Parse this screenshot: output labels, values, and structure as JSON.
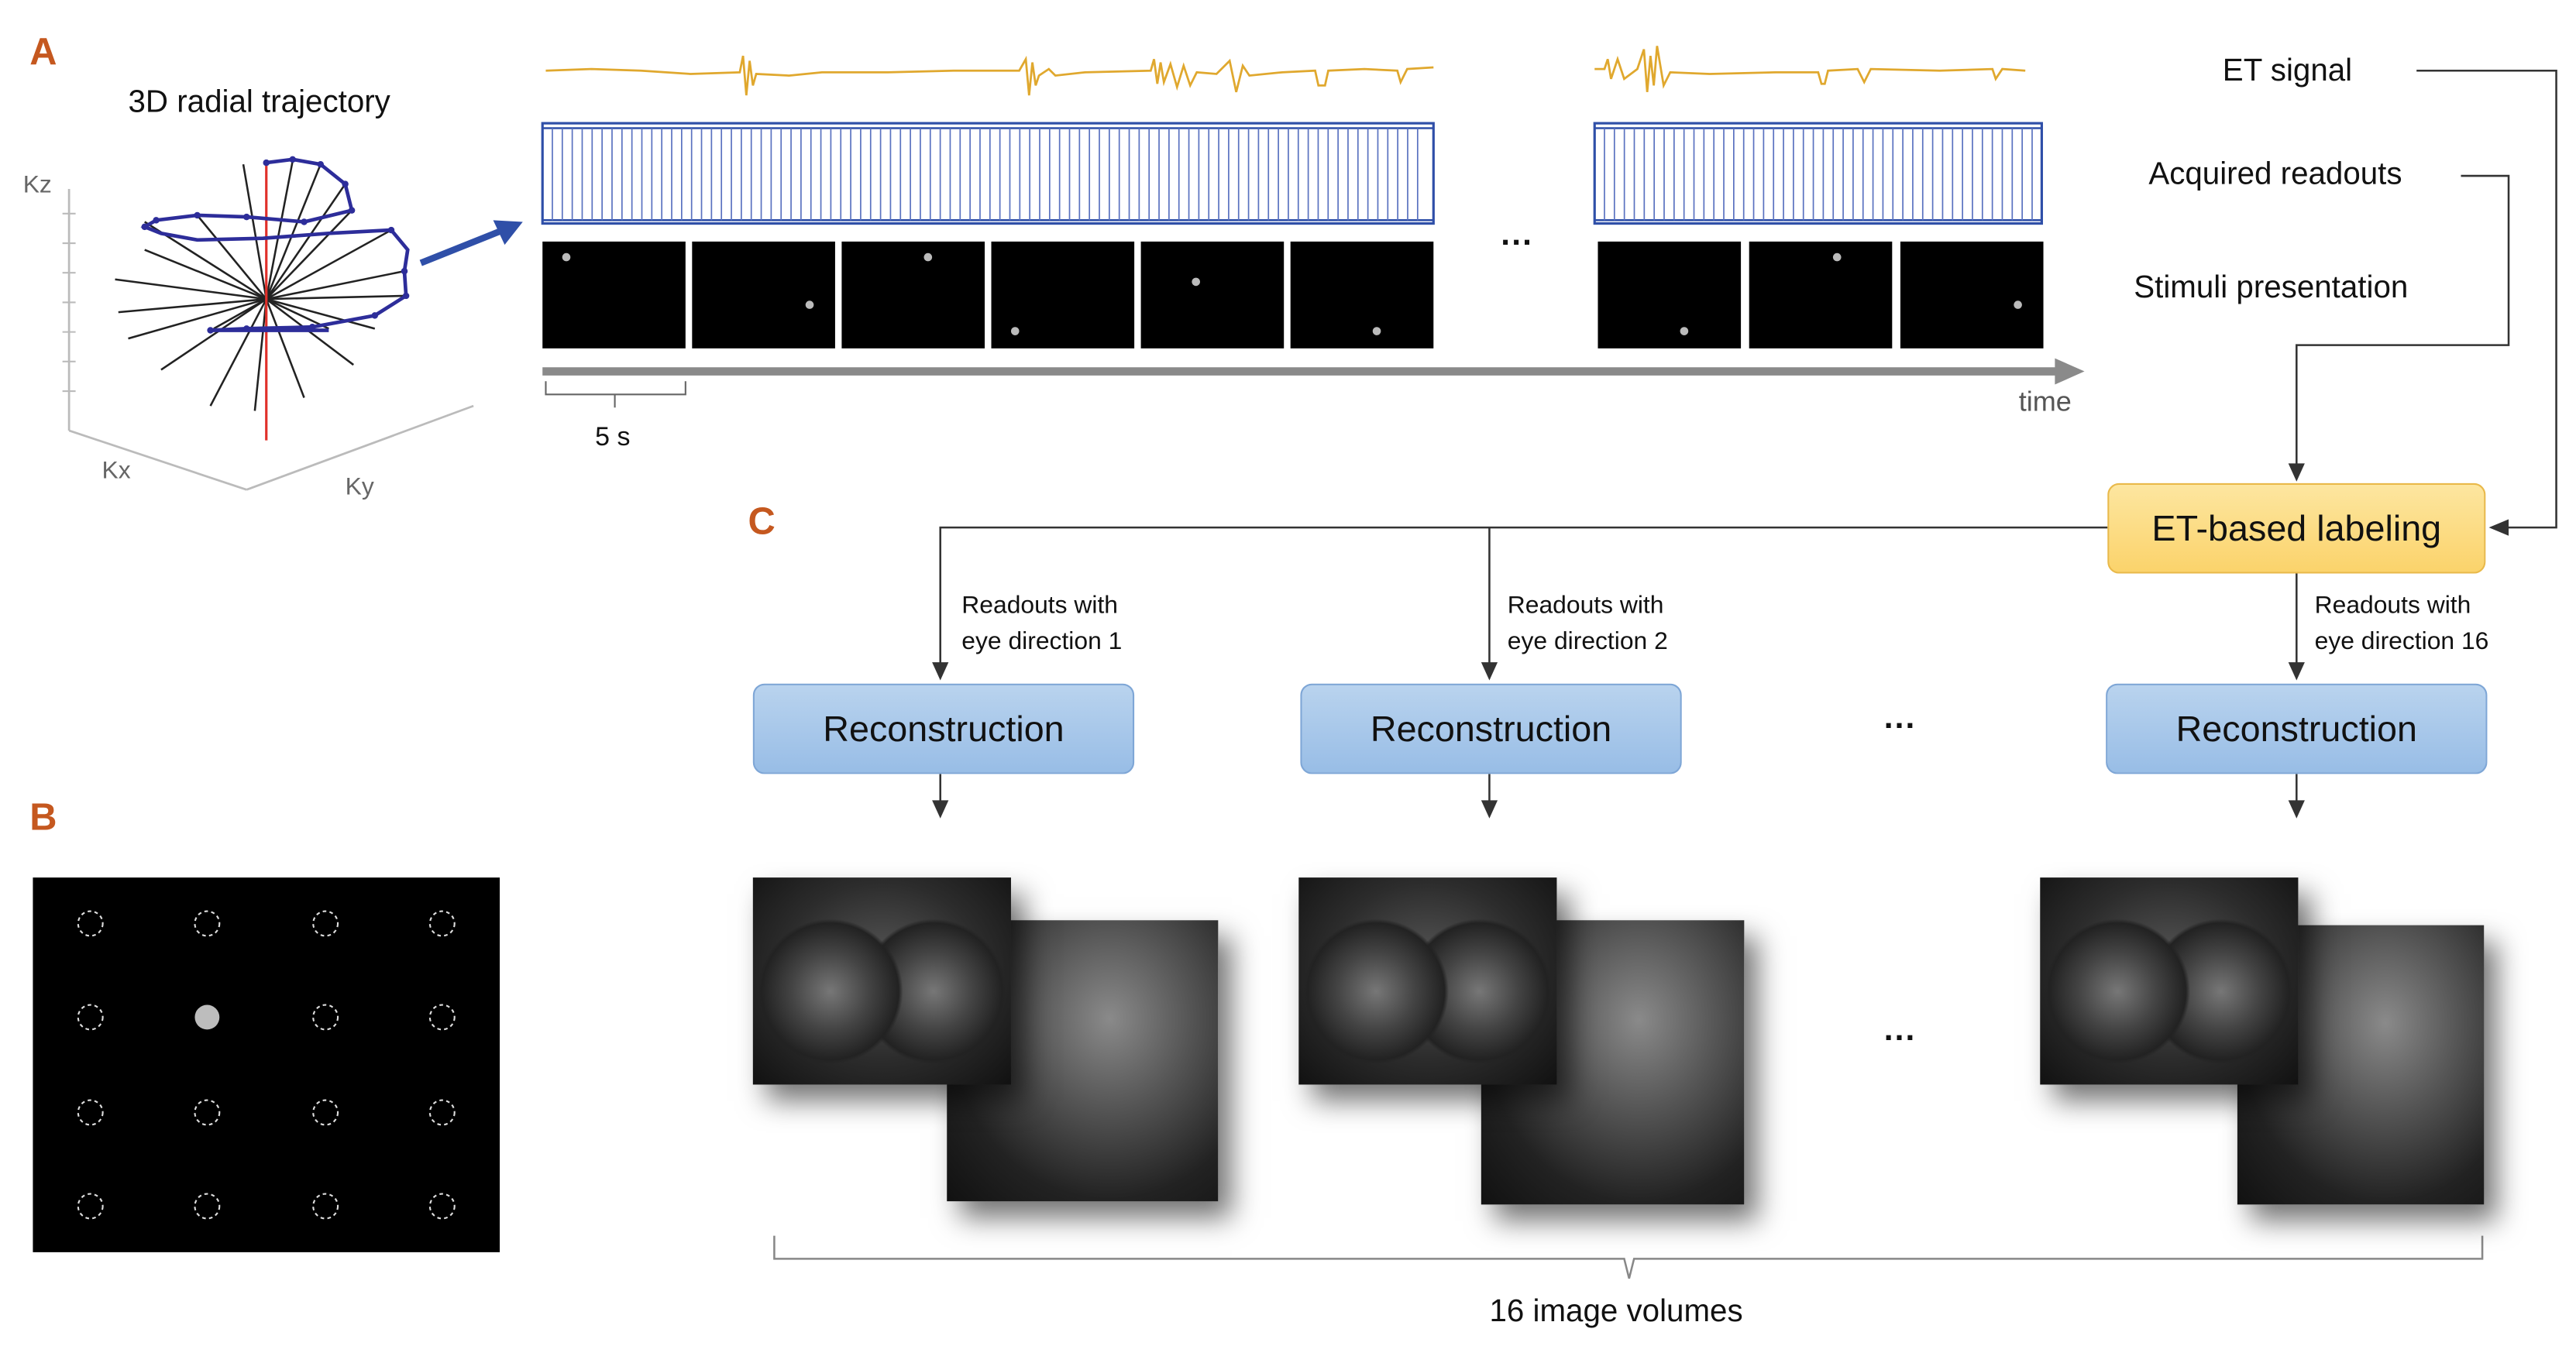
{
  "panels": {
    "a": "A",
    "b": "B",
    "c": "C"
  },
  "trajectory": {
    "title": "3D radial trajectory",
    "kz": "Kz",
    "kx": "Kx",
    "ky": "Ky"
  },
  "timeline": {
    "ellipsis": "...",
    "scale_label": "5 s",
    "time_label": "time"
  },
  "legend": {
    "et_signal": "ET signal",
    "acquired_readouts": "Acquired readouts",
    "stimuli_presentation": "Stimuli presentation"
  },
  "labeling": {
    "label": "ET-based labeling"
  },
  "branches": [
    {
      "line1": "Readouts with",
      "line2": "eye direction 1",
      "recon": "Reconstruction"
    },
    {
      "line1": "Readouts with",
      "line2": "eye direction 2",
      "recon": "Reconstruction"
    },
    {
      "line1": "Readouts with",
      "line2": "eye direction 16",
      "recon": "Reconstruction"
    }
  ],
  "recon_ellipsis": "...",
  "volume_ellipsis": "...",
  "volumes_label": "16 image volumes",
  "colors": {
    "accent_letter": "#c5581f",
    "et_trace": "#e0a82e",
    "readout_blue": "#2f4fa8",
    "recon_box": "#a9c8ec",
    "labeling_box": "#fcd978"
  }
}
